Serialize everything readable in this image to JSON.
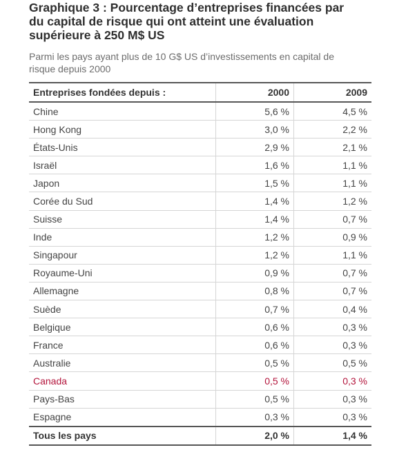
{
  "header": {
    "title": "Graphique 3 : Pourcentage d’entreprises financées par du capital de risque qui ont atteint une évaluation supérieure à 250 M$ US",
    "subtitle": "Parmi les pays ayant plus de 10 G$ US d’investissements en capital de risque depuis 2000"
  },
  "colors": {
    "highlight": "#b3143b",
    "rule": "#555555",
    "grid": "#d5d5d5"
  },
  "chart_data": {
    "type": "table",
    "columns": [
      "Entreprises fondées depuis :",
      "2000",
      "2009"
    ],
    "rows": [
      {
        "label": "Chine",
        "v2000": "5,6 %",
        "v2009": "4,5 %"
      },
      {
        "label": "Hong Kong",
        "v2000": "3,0 %",
        "v2009": "2,2 %"
      },
      {
        "label": "États-Unis",
        "v2000": "2,9 %",
        "v2009": "2,1 %"
      },
      {
        "label": "Israël",
        "v2000": "1,6 %",
        "v2009": "1,1 %"
      },
      {
        "label": "Japon",
        "v2000": "1,5 %",
        "v2009": "1,1 %"
      },
      {
        "label": "Corée du Sud",
        "v2000": "1,4 %",
        "v2009": "1,2 %"
      },
      {
        "label": "Suisse",
        "v2000": "1,4 %",
        "v2009": "0,7 %"
      },
      {
        "label": "Inde",
        "v2000": "1,2 %",
        "v2009": "0,9 %"
      },
      {
        "label": "Singapour",
        "v2000": "1,2 %",
        "v2009": "1,1 %"
      },
      {
        "label": "Royaume-Uni",
        "v2000": "0,9 %",
        "v2009": "0,7 %"
      },
      {
        "label": "Allemagne",
        "v2000": "0,8 %",
        "v2009": "0,7 %"
      },
      {
        "label": "Suède",
        "v2000": "0,7 %",
        "v2009": "0,4 %"
      },
      {
        "label": "Belgique",
        "v2000": "0,6 %",
        "v2009": "0,3 %"
      },
      {
        "label": "France",
        "v2000": "0,6 %",
        "v2009": "0,3 %"
      },
      {
        "label": "Australie",
        "v2000": "0,5 %",
        "v2009": "0,5 %"
      },
      {
        "label": "Canada",
        "v2000": "0,5 %",
        "v2009": "0,3 %",
        "highlight": true
      },
      {
        "label": "Pays-Bas",
        "v2000": "0,5 %",
        "v2009": "0,3 %"
      },
      {
        "label": "Espagne",
        "v2000": "0,3 %",
        "v2009": "0,3 %"
      }
    ],
    "total": {
      "label": "Tous les pays",
      "v2000": "2,0 %",
      "v2009": "1,4 %"
    }
  }
}
